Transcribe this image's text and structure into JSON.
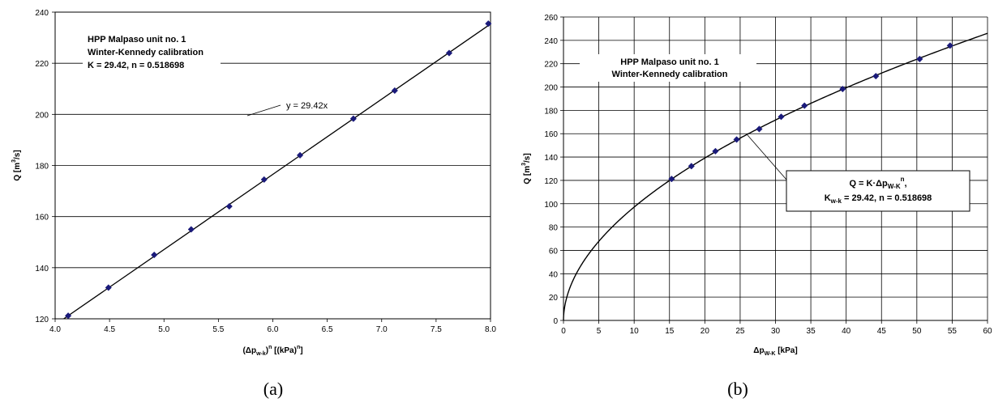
{
  "chart_data": [
    {
      "type": "scatter",
      "panel_label": "(a)",
      "xlabel": "(Δp",
      "xlabel_sub": "w-k",
      "xlabel_mid": ")",
      "xlabel_sup": "n",
      "xlabel_tail": " [(kPa)",
      "xlabel_sup2": "n",
      "xlabel_end": "]",
      "ylabel": "Q [m",
      "ylabel_sup": "3",
      "ylabel_end": "/s]",
      "xlim": [
        4.0,
        8.0
      ],
      "ylim": [
        120,
        240
      ],
      "xticks": [
        "4.0",
        "4.5",
        "5.0",
        "5.5",
        "6.0",
        "6.5",
        "7.0",
        "7.5",
        "8.0"
      ],
      "yticks": [
        "120",
        "140",
        "160",
        "180",
        "200",
        "220",
        "240"
      ],
      "grid": true,
      "annotation_lines": [
        "HPP Malpaso unit no. 1",
        "Winter-Kennedy calibration",
        "K = 29.42, n = 0.518698"
      ],
      "trendline_label": "y = 29.42x",
      "trendline_slope": 29.42,
      "marker_color": "#1a1a7a",
      "x": [
        4.12,
        4.49,
        4.91,
        5.25,
        5.6,
        5.92,
        6.25,
        6.74,
        7.12,
        7.62,
        7.98
      ],
      "y": [
        121.2,
        132.2,
        145.0,
        155.0,
        164.0,
        174.5,
        184.0,
        198.3,
        209.3,
        224.0,
        235.5
      ]
    },
    {
      "type": "scatter",
      "panel_label": "(b)",
      "xlabel": "Δp",
      "xlabel_sub": "W-K",
      "xlabel_tail": " [kPa]",
      "ylabel": "Q [m",
      "ylabel_sup": "3",
      "ylabel_end": "/s]",
      "xlim": [
        0,
        60
      ],
      "ylim": [
        0,
        260
      ],
      "xticks": [
        "0",
        "5",
        "10",
        "15",
        "20",
        "25",
        "30",
        "35",
        "40",
        "45",
        "50",
        "55",
        "60"
      ],
      "yticks": [
        "0",
        "20",
        "40",
        "60",
        "80",
        "100",
        "120",
        "140",
        "160",
        "180",
        "200",
        "220",
        "240",
        "260"
      ],
      "grid": true,
      "annotation_lines": [
        "HPP Malpaso unit no. 1",
        "Winter-Kennedy calibration"
      ],
      "equation_line1": "Q = K·Δp",
      "equation_line1_sub": "W-K",
      "equation_line1_sup": "n",
      "equation_line1_end": ",",
      "equation_line2": "K",
      "equation_line2_sub": "w-k",
      "equation_line2_end": " = 29.42, n = 0.518698",
      "curve_K": 29.42,
      "curve_n": 0.518698,
      "marker_color": "#1a1a7a",
      "x": [
        15.3,
        18.1,
        21.5,
        24.5,
        27.7,
        30.8,
        34.1,
        39.5,
        44.2,
        50.4,
        54.7
      ],
      "y": [
        121.2,
        132.2,
        145.0,
        155.0,
        164.0,
        174.5,
        184.0,
        198.3,
        209.3,
        224.0,
        235.5
      ]
    }
  ]
}
